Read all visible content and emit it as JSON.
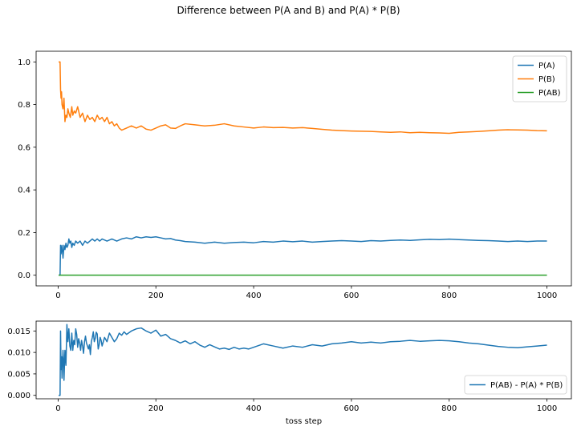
{
  "figure": {
    "suptitle": "Difference between P(A and B) and P(A) * P(B)"
  },
  "chart_data": [
    {
      "type": "line",
      "title": "",
      "xlabel": "",
      "ylabel": "",
      "xlim": [
        -45,
        1050
      ],
      "ylim": [
        -0.05,
        1.05
      ],
      "xticks": [
        0,
        200,
        400,
        600,
        800,
        1000
      ],
      "yticks": [
        0.0,
        0.2,
        0.4,
        0.6,
        0.8,
        1.0
      ],
      "ytick_labels": [
        "0.0",
        "0.2",
        "0.4",
        "0.6",
        "0.8",
        "1.0"
      ],
      "legend": "upper right",
      "grid": false,
      "series": [
        {
          "name": "P(A)",
          "color": "#1f77b4",
          "x": [
            1,
            4,
            5,
            6,
            8,
            10,
            12,
            14,
            16,
            18,
            20,
            22,
            24,
            26,
            28,
            30,
            33,
            36,
            40,
            45,
            50,
            55,
            60,
            65,
            70,
            75,
            80,
            85,
            90,
            100,
            110,
            120,
            130,
            140,
            150,
            160,
            170,
            180,
            190,
            200,
            210,
            220,
            230,
            240,
            250,
            260,
            280,
            300,
            320,
            340,
            360,
            380,
            400,
            420,
            440,
            460,
            480,
            500,
            520,
            540,
            560,
            580,
            600,
            620,
            640,
            660,
            680,
            700,
            720,
            740,
            760,
            780,
            800,
            820,
            840,
            860,
            880,
            900,
            920,
            940,
            960,
            980,
            1000
          ],
          "y": [
            0.0,
            0.0,
            0.14,
            0.1,
            0.14,
            0.08,
            0.14,
            0.12,
            0.15,
            0.13,
            0.14,
            0.17,
            0.15,
            0.16,
            0.13,
            0.15,
            0.14,
            0.16,
            0.15,
            0.16,
            0.14,
            0.16,
            0.15,
            0.16,
            0.17,
            0.16,
            0.17,
            0.16,
            0.17,
            0.16,
            0.17,
            0.16,
            0.17,
            0.175,
            0.17,
            0.18,
            0.175,
            0.18,
            0.177,
            0.18,
            0.175,
            0.17,
            0.172,
            0.165,
            0.162,
            0.158,
            0.155,
            0.15,
            0.155,
            0.15,
            0.153,
            0.155,
            0.152,
            0.158,
            0.155,
            0.16,
            0.157,
            0.16,
            0.155,
            0.158,
            0.16,
            0.162,
            0.16,
            0.158,
            0.162,
            0.16,
            0.163,
            0.165,
            0.163,
            0.166,
            0.168,
            0.167,
            0.169,
            0.167,
            0.165,
            0.163,
            0.162,
            0.16,
            0.158,
            0.16,
            0.158,
            0.16,
            0.16
          ]
        },
        {
          "name": "P(B)",
          "color": "#ff7f0e",
          "x": [
            1,
            2,
            4,
            5,
            6,
            7,
            8,
            10,
            12,
            14,
            16,
            18,
            20,
            22,
            25,
            28,
            30,
            33,
            36,
            40,
            45,
            50,
            55,
            60,
            65,
            70,
            75,
            80,
            85,
            90,
            95,
            100,
            105,
            110,
            115,
            120,
            125,
            130,
            140,
            150,
            160,
            170,
            180,
            190,
            200,
            210,
            220,
            230,
            240,
            250,
            260,
            280,
            300,
            320,
            340,
            360,
            380,
            400,
            420,
            440,
            460,
            480,
            500,
            520,
            540,
            560,
            580,
            600,
            620,
            640,
            660,
            680,
            700,
            720,
            740,
            760,
            780,
            800,
            820,
            840,
            860,
            880,
            900,
            920,
            940,
            960,
            980,
            1000
          ],
          "y": [
            1.0,
            1.0,
            1.0,
            0.87,
            0.83,
            0.86,
            0.8,
            0.78,
            0.83,
            0.72,
            0.75,
            0.74,
            0.78,
            0.76,
            0.74,
            0.79,
            0.75,
            0.77,
            0.76,
            0.79,
            0.74,
            0.76,
            0.72,
            0.75,
            0.73,
            0.74,
            0.72,
            0.75,
            0.73,
            0.74,
            0.72,
            0.74,
            0.71,
            0.72,
            0.7,
            0.71,
            0.69,
            0.68,
            0.69,
            0.7,
            0.69,
            0.7,
            0.685,
            0.68,
            0.69,
            0.7,
            0.705,
            0.69,
            0.688,
            0.7,
            0.71,
            0.705,
            0.7,
            0.703,
            0.71,
            0.7,
            0.695,
            0.69,
            0.695,
            0.692,
            0.693,
            0.69,
            0.692,
            0.688,
            0.684,
            0.68,
            0.678,
            0.676,
            0.675,
            0.674,
            0.672,
            0.67,
            0.672,
            0.668,
            0.67,
            0.668,
            0.667,
            0.665,
            0.67,
            0.672,
            0.674,
            0.677,
            0.68,
            0.682,
            0.681,
            0.68,
            0.678,
            0.677
          ]
        },
        {
          "name": "P(AB)",
          "color": "#2ca02c",
          "x": [
            1,
            1000
          ],
          "y": [
            0.0,
            0.0
          ]
        }
      ]
    },
    {
      "type": "line",
      "title": "",
      "xlabel": "toss step",
      "ylabel": "",
      "xlim": [
        -45,
        1050
      ],
      "ylim": [
        -0.0008,
        0.0173
      ],
      "xticks": [
        0,
        200,
        400,
        600,
        800,
        1000
      ],
      "yticks": [
        0.0,
        0.005,
        0.01,
        0.015
      ],
      "ytick_labels": [
        "0.000",
        "0.005",
        "0.010",
        "0.015"
      ],
      "legend": "lower right",
      "grid": false,
      "series": [
        {
          "name": "P(AB) - P(A) * P(B)",
          "color": "#1f77b4",
          "x": [
            1,
            4,
            5,
            6,
            7,
            8,
            10,
            11,
            12,
            14,
            15,
            16,
            18,
            20,
            22,
            24,
            26,
            28,
            30,
            32,
            34,
            36,
            38,
            40,
            42,
            44,
            46,
            48,
            50,
            52,
            54,
            56,
            58,
            60,
            62,
            64,
            66,
            68,
            70,
            72,
            74,
            76,
            78,
            80,
            82,
            84,
            86,
            88,
            90,
            95,
            100,
            105,
            110,
            115,
            120,
            125,
            130,
            135,
            140,
            150,
            160,
            170,
            180,
            190,
            200,
            210,
            220,
            230,
            240,
            250,
            260,
            270,
            280,
            290,
            300,
            310,
            320,
            330,
            340,
            350,
            360,
            370,
            380,
            390,
            400,
            420,
            440,
            460,
            480,
            500,
            520,
            540,
            560,
            580,
            600,
            620,
            640,
            660,
            680,
            700,
            720,
            740,
            760,
            780,
            800,
            820,
            840,
            860,
            880,
            900,
            920,
            940,
            960,
            980,
            1000
          ],
          "y": [
            0.0,
            0.0,
            0.015,
            0.006,
            0.009,
            0.004,
            0.0105,
            0.0085,
            0.0035,
            0.0105,
            0.009,
            0.007,
            0.0165,
            0.0125,
            0.0155,
            0.0115,
            0.0105,
            0.0145,
            0.0105,
            0.0128,
            0.0118,
            0.0155,
            0.0142,
            0.0112,
            0.0132,
            0.0122,
            0.0105,
            0.0128,
            0.0115,
            0.0098,
            0.0125,
            0.0138,
            0.0122,
            0.0115,
            0.0108,
            0.0118,
            0.0095,
            0.0125,
            0.0135,
            0.0148,
            0.0125,
            0.0133,
            0.0147,
            0.0143,
            0.0108,
            0.0118,
            0.0135,
            0.0128,
            0.0115,
            0.0135,
            0.0125,
            0.0145,
            0.0135,
            0.0125,
            0.0132,
            0.0145,
            0.014,
            0.0148,
            0.0142,
            0.015,
            0.0155,
            0.0157,
            0.015,
            0.0145,
            0.0152,
            0.0138,
            0.0142,
            0.0132,
            0.0128,
            0.0122,
            0.0127,
            0.012,
            0.0125,
            0.0117,
            0.0112,
            0.0118,
            0.0113,
            0.0108,
            0.011,
            0.0107,
            0.0112,
            0.0108,
            0.011,
            0.0108,
            0.0112,
            0.012,
            0.0115,
            0.011,
            0.0115,
            0.0112,
            0.0118,
            0.0115,
            0.012,
            0.0122,
            0.0125,
            0.0122,
            0.0124,
            0.0122,
            0.0125,
            0.0126,
            0.0128,
            0.0126,
            0.0127,
            0.0128,
            0.0127,
            0.0125,
            0.0122,
            0.012,
            0.0117,
            0.0114,
            0.0112,
            0.0111,
            0.0113,
            0.0115,
            0.0117
          ]
        }
      ]
    }
  ]
}
